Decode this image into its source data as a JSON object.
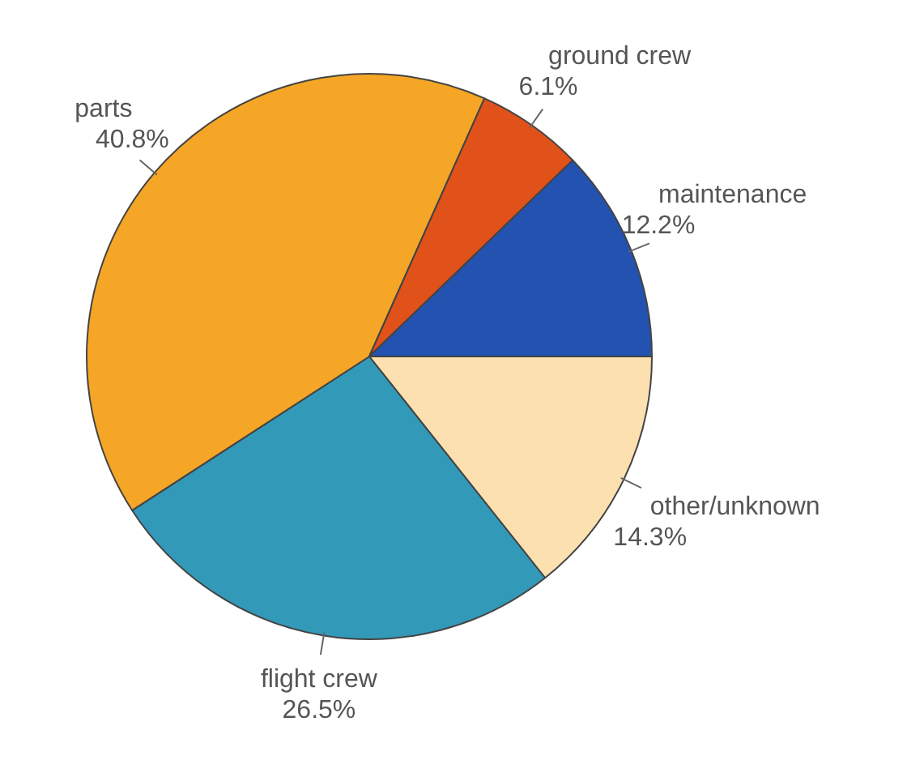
{
  "chart_data": {
    "type": "pie",
    "categories": [
      "other/unknown",
      "flight crew",
      "parts",
      "ground crew",
      "maintenance"
    ],
    "values": [
      14.3,
      26.5,
      40.8,
      6.1,
      12.2
    ],
    "value_labels": [
      "14.3%",
      "26.5%",
      "40.8%",
      "6.1%",
      "12.2%"
    ],
    "colors": [
      "#fde0b0",
      "#3399b8",
      "#f5a626",
      "#e0521a",
      "#2352b0"
    ],
    "legend": false
  }
}
